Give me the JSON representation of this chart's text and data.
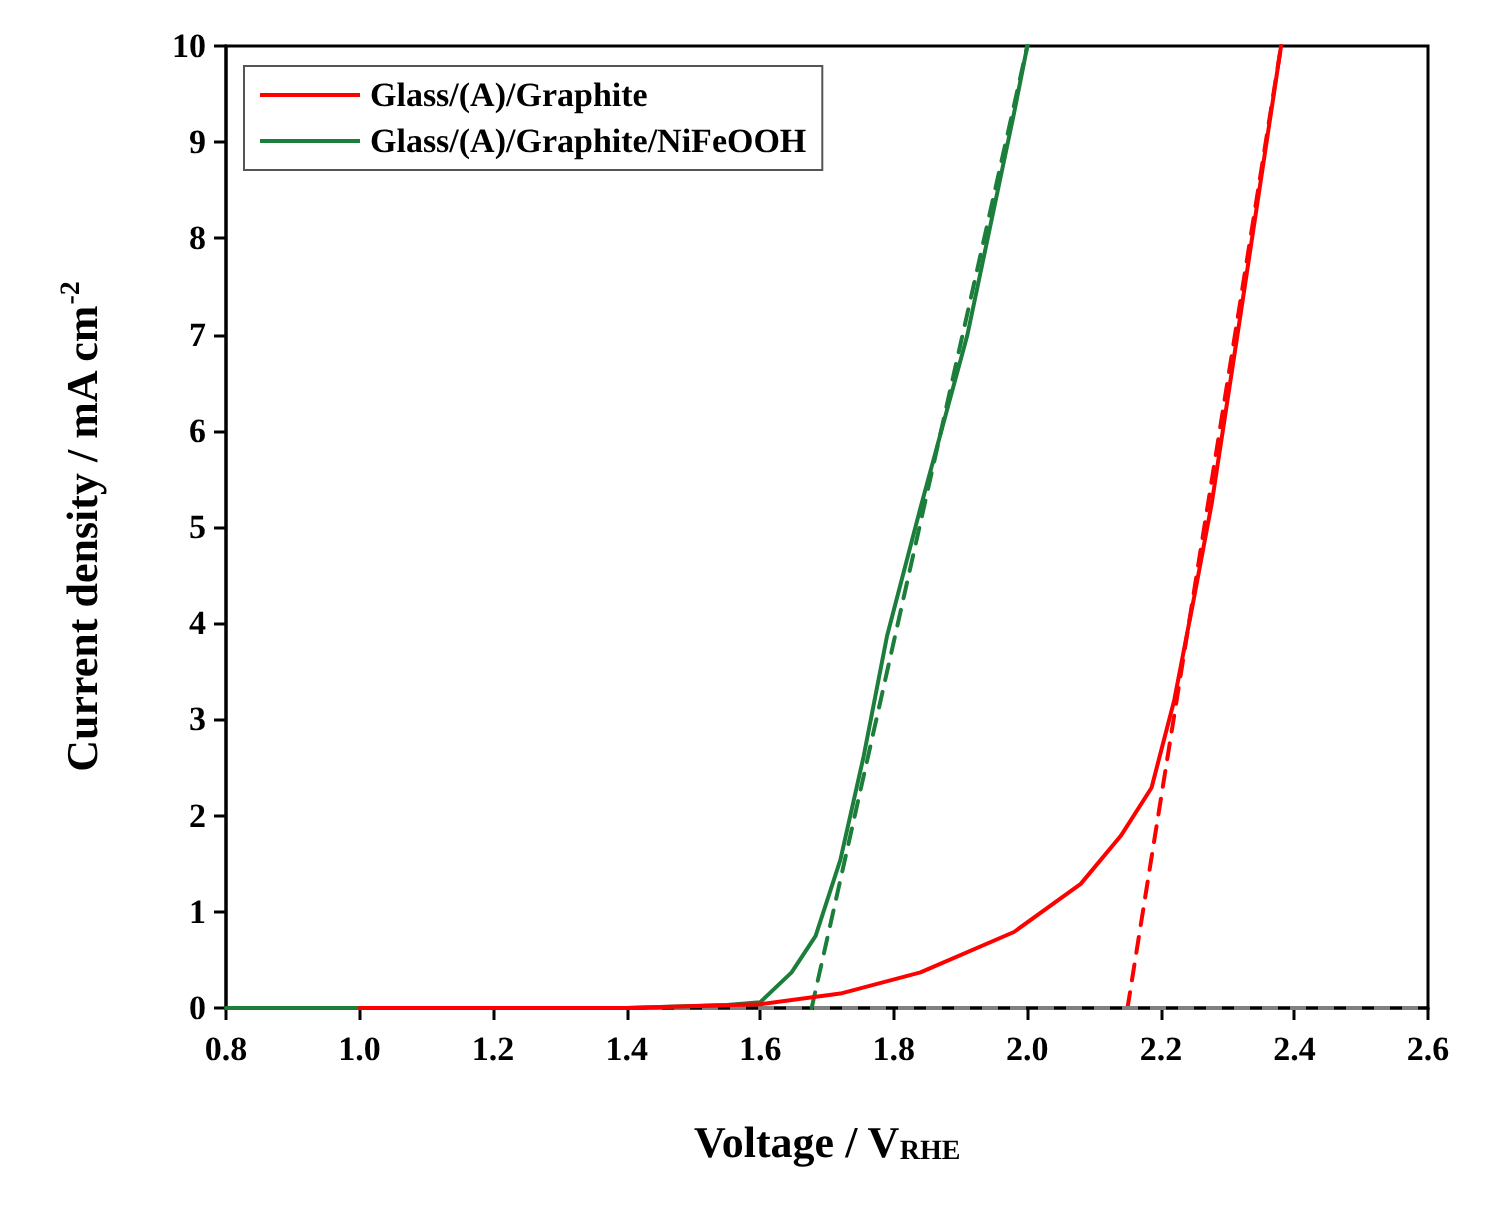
{
  "chart_data": {
    "type": "line",
    "xlabel": "Voltage / V$_{RHE}$",
    "ylabel": "Current density / mA cm$^{-2}$",
    "xlim": [
      0.8,
      2.6
    ],
    "xticks": [
      0.8,
      {
        "value": 1,
        "label": "1.0"
      },
      1.2,
      1.4,
      1.6,
      1.8,
      {
        "value": 2,
        "label": "2.0"
      },
      2.2,
      2.4,
      2.6
    ],
    "ylim": [
      0,
      10
    ],
    "yticks": [
      0,
      1,
      2,
      3,
      4,
      5,
      6,
      7,
      8,
      9,
      10
    ],
    "grid": false,
    "legend": "top left",
    "marker": "none",
    "line_style": "solid",
    "series": [
      {
        "name": "Glass/(A)/Graphite",
        "color": "#ff0000",
        "x": [
          1.0,
          1.2,
          1.4,
          1.6,
          1.72,
          1.84,
          1.98,
          2.08,
          2.14,
          2.186,
          2.22,
          2.25,
          2.276,
          2.318,
          2.38
        ],
        "values": [
          0.0,
          0.0,
          0.0,
          0.04,
          0.15,
          0.37,
          0.79,
          1.29,
          1.79,
          2.29,
          3.2,
          4.28,
          5.24,
          7.15,
          10
        ]
      },
      {
        "name": "Glass/(A)/Graphite/NiFeOOH",
        "color": "#1b7f3b",
        "x": [
          0.8,
          1.0,
          1.2,
          1.4,
          1.5,
          1.55,
          1.6,
          1.647,
          1.683,
          1.72,
          1.755,
          1.79,
          1.84,
          1.91,
          1.98,
          2.0
        ],
        "values": [
          0,
          0,
          0,
          0,
          0.02,
          0.03,
          0.06,
          0.37,
          0.75,
          1.54,
          2.62,
          3.87,
          5.2,
          6.99,
          9.3,
          10
        ]
      },
      {
        "type": "line",
        "line_style": "dashed",
        "color": "#ff0000",
        "x": [
          2.15,
          2.38
        ],
        "values": [
          0,
          10
        ]
      },
      {
        "type": "line",
        "line_style": "dashed",
        "color": "#1b7f3b",
        "x": [
          1.677,
          2.0
        ],
        "values": [
          0,
          10
        ]
      }
    ],
    "ref_lines": [
      {
        "axis": "y",
        "value": 0,
        "color": "#808080",
        "line_style": "dashed"
      }
    ]
  }
}
